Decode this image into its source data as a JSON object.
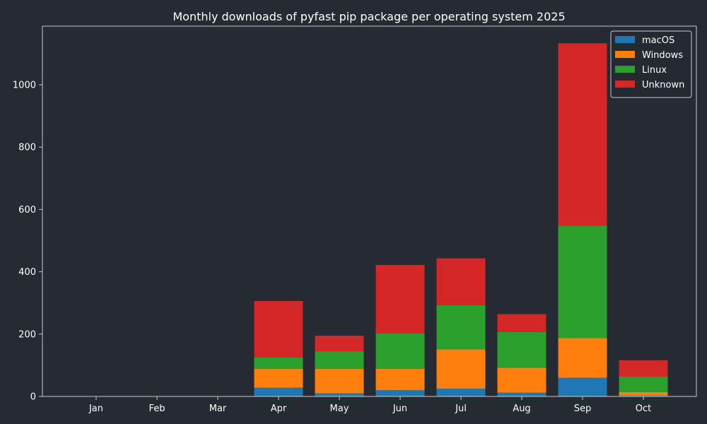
{
  "chart_data": {
    "type": "bar",
    "stacked": true,
    "title": "Monthly downloads of pyfast pip package per operating system 2025",
    "xlabel": "",
    "ylabel": "",
    "categories": [
      "Jan",
      "Feb",
      "Mar",
      "Apr",
      "May",
      "Jun",
      "Jul",
      "Aug",
      "Sep",
      "Oct"
    ],
    "series": [
      {
        "name": "macOS",
        "color": "#1f77b4",
        "values": [
          0,
          0,
          0,
          28,
          10,
          20,
          25,
          12,
          60,
          3
        ]
      },
      {
        "name": "Windows",
        "color": "#ff7f0e",
        "values": [
          0,
          0,
          0,
          61,
          79,
          69,
          126,
          80,
          127,
          11
        ]
      },
      {
        "name": "Linux",
        "color": "#2ca02c",
        "values": [
          0,
          0,
          0,
          36,
          56,
          113,
          142,
          115,
          361,
          50
        ]
      },
      {
        "name": "Unknown",
        "color": "#d62728",
        "values": [
          0,
          0,
          0,
          181,
          50,
          220,
          150,
          57,
          585,
          52
        ]
      }
    ],
    "ylim": [
      0,
      1188
    ],
    "yticks": [
      0,
      200,
      400,
      600,
      800,
      1000
    ],
    "grid": false,
    "legend_position": "top-right",
    "colors": {
      "background": "#262a33",
      "axes": "#c8c8c8",
      "text": "#ffffff"
    }
  }
}
